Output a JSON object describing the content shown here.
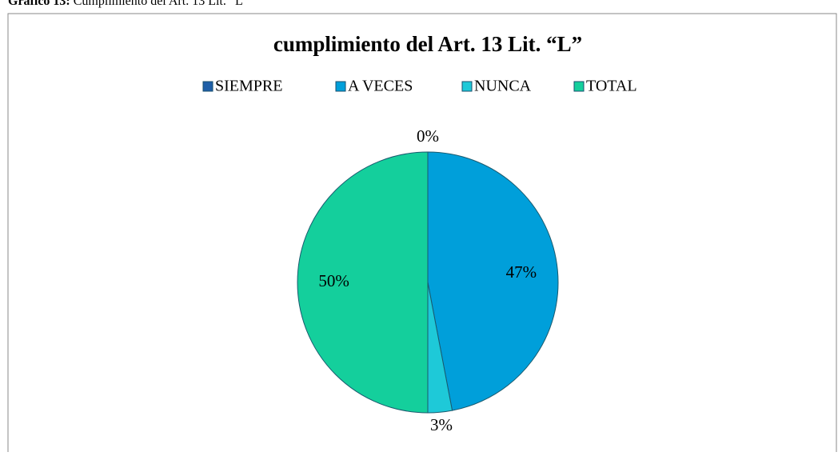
{
  "caption": {
    "label": "Gráfico 13:",
    "text": "Cumplimiento del Art. 13 Lit. “L”"
  },
  "chart_data": {
    "type": "pie",
    "title": "cumplimiento del Art. 13 Lit. “L”",
    "categories": [
      "SIEMPRE",
      "A VECES",
      "NUNCA",
      "TOTAL"
    ],
    "values": [
      0,
      47,
      3,
      50
    ],
    "value_labels": [
      "0%",
      "47%",
      "3%",
      "50%"
    ],
    "colors": [
      "#1f5fa8",
      "#009fda",
      "#1ec9d8",
      "#14cf9c"
    ],
    "legend": "top"
  }
}
